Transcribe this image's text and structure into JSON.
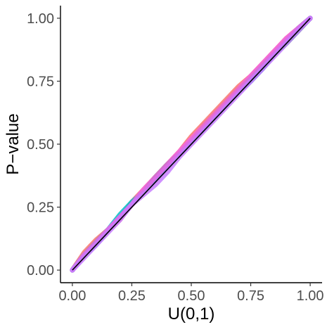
{
  "chart_data": {
    "type": "line",
    "xlabel": "U(0,1)",
    "ylabel": "P−value",
    "xlim": [
      -0.05,
      1.05
    ],
    "ylim": [
      -0.05,
      1.05
    ],
    "x_ticks": [
      0,
      0.25,
      0.5,
      0.75,
      1
    ],
    "y_ticks": [
      0,
      0.25,
      0.5,
      0.75,
      1
    ],
    "x_tick_labels": [
      "0.00",
      "0.25",
      "0.50",
      "0.75",
      "1.00"
    ],
    "y_tick_labels": [
      "0.00",
      "0.25",
      "0.50",
      "0.75",
      "1.00"
    ],
    "grid": false,
    "legend": "none",
    "reference_line": {
      "x": [
        0,
        1
      ],
      "y": [
        0,
        1
      ],
      "color": "#000000"
    },
    "series": [
      {
        "color": "#F8766D",
        "x": [
          0,
          0.05,
          0.1,
          0.15,
          0.2,
          0.25,
          0.3,
          0.35,
          0.4,
          0.45,
          0.5,
          0.55,
          0.6,
          0.65,
          0.7,
          0.75,
          0.8,
          0.85,
          0.9,
          0.95,
          1
        ],
        "y": [
          0,
          0.07,
          0.12,
          0.16,
          0.2,
          0.27,
          0.32,
          0.37,
          0.42,
          0.47,
          0.53,
          0.58,
          0.63,
          0.68,
          0.73,
          0.77,
          0.82,
          0.87,
          0.92,
          0.96,
          1
        ]
      },
      {
        "color": "#B79F00",
        "x": [
          0,
          0.05,
          0.1,
          0.15,
          0.2,
          0.25,
          0.3,
          0.35,
          0.4,
          0.45,
          0.5,
          0.55,
          0.6,
          0.65,
          0.7,
          0.75,
          0.8,
          0.85,
          0.9,
          0.95,
          1
        ],
        "y": [
          0,
          0.06,
          0.11,
          0.16,
          0.21,
          0.26,
          0.31,
          0.36,
          0.41,
          0.46,
          0.51,
          0.57,
          0.62,
          0.67,
          0.72,
          0.76,
          0.81,
          0.86,
          0.91,
          0.96,
          1
        ]
      },
      {
        "color": "#00BA38",
        "x": [
          0,
          0.05,
          0.1,
          0.15,
          0.2,
          0.25,
          0.3,
          0.35,
          0.4,
          0.45,
          0.5,
          0.55,
          0.6,
          0.65,
          0.7,
          0.75,
          0.8,
          0.85,
          0.9,
          0.95,
          1
        ],
        "y": [
          0,
          0.06,
          0.11,
          0.16,
          0.21,
          0.26,
          0.31,
          0.37,
          0.42,
          0.46,
          0.51,
          0.56,
          0.61,
          0.66,
          0.71,
          0.75,
          0.8,
          0.86,
          0.9,
          0.95,
          1
        ]
      },
      {
        "color": "#00BFC4",
        "x": [
          0,
          0.05,
          0.1,
          0.15,
          0.2,
          0.25,
          0.3,
          0.35,
          0.4,
          0.45,
          0.5,
          0.55,
          0.6,
          0.65,
          0.7,
          0.75,
          0.8,
          0.85,
          0.9,
          0.95,
          1
        ],
        "y": [
          0,
          0.06,
          0.11,
          0.16,
          0.22,
          0.27,
          0.31,
          0.36,
          0.41,
          0.46,
          0.51,
          0.56,
          0.61,
          0.66,
          0.71,
          0.76,
          0.81,
          0.86,
          0.91,
          0.96,
          1
        ]
      },
      {
        "color": "#619CFF",
        "x": [
          0,
          0.05,
          0.1,
          0.15,
          0.2,
          0.25,
          0.3,
          0.35,
          0.4,
          0.45,
          0.5,
          0.55,
          0.6,
          0.65,
          0.7,
          0.75,
          0.8,
          0.85,
          0.9,
          0.95,
          1
        ],
        "y": [
          0,
          0.06,
          0.1,
          0.16,
          0.21,
          0.26,
          0.31,
          0.36,
          0.41,
          0.46,
          0.51,
          0.56,
          0.61,
          0.66,
          0.71,
          0.75,
          0.8,
          0.86,
          0.91,
          0.96,
          1
        ]
      },
      {
        "color": "#F564E3",
        "x": [
          0,
          0.05,
          0.1,
          0.15,
          0.2,
          0.25,
          0.3,
          0.35,
          0.4,
          0.45,
          0.5,
          0.55,
          0.6,
          0.65,
          0.7,
          0.75,
          0.8,
          0.85,
          0.9,
          0.95,
          1
        ],
        "y": [
          0,
          0.06,
          0.11,
          0.16,
          0.21,
          0.26,
          0.32,
          0.37,
          0.42,
          0.47,
          0.52,
          0.57,
          0.62,
          0.67,
          0.72,
          0.77,
          0.82,
          0.87,
          0.92,
          0.96,
          1
        ]
      },
      {
        "color": "#C77CFF",
        "x": [
          0,
          0.05,
          0.1,
          0.15,
          0.2,
          0.25,
          0.3,
          0.35,
          0.4,
          0.45,
          0.5,
          0.55,
          0.6,
          0.65,
          0.7,
          0.75,
          0.8,
          0.85,
          0.9,
          0.95,
          1
        ],
        "y": [
          0,
          0.05,
          0.1,
          0.15,
          0.2,
          0.26,
          0.3,
          0.34,
          0.39,
          0.45,
          0.5,
          0.55,
          0.6,
          0.65,
          0.7,
          0.75,
          0.8,
          0.85,
          0.9,
          0.95,
          1
        ]
      }
    ]
  }
}
